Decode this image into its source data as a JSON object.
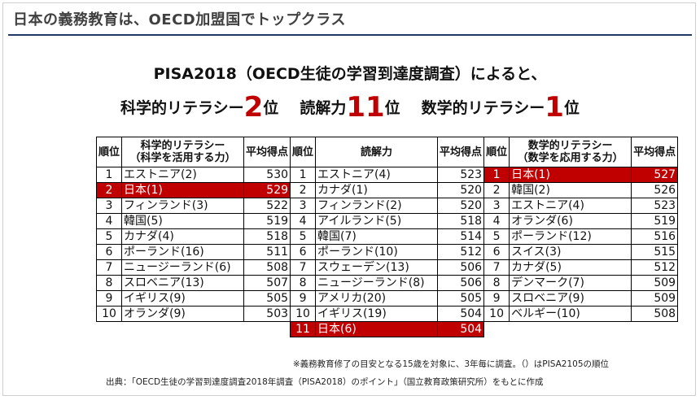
{
  "header": {
    "title": "日本の義務教育は、OECD加盟国でトップクラス"
  },
  "headline": {
    "line1": "PISA2018（OECD生徒の学習到達度調査）によると、",
    "science_label": "科学的リテラシー",
    "science_rank": "2",
    "science_suffix": "位",
    "reading_label": "読解力",
    "reading_rank": "11",
    "reading_suffix": "位",
    "math_label": "数学的リテラシー",
    "math_rank": "1",
    "math_suffix": "位"
  },
  "table": {
    "headers": {
      "rank": "順位",
      "science": "科学的リテラシー",
      "science_sub": "（科学を活用する力）",
      "avg": "平均得点",
      "reading": "読解力",
      "math": "数学的リテラシー",
      "math_sub": "（数学を応用する力）"
    },
    "rows": [
      {
        "r1": "1",
        "s_name": "エストニア(2)",
        "s_score": "530",
        "r2": "1",
        "rd_name": "エストニア(4)",
        "rd_score": "523",
        "r3": "1",
        "m_name": "日本(1)",
        "m_score": "527"
      },
      {
        "r1": "2",
        "s_name": "日本(1)",
        "s_score": "529",
        "r2": "2",
        "rd_name": "カナダ(1)",
        "rd_score": "520",
        "r3": "2",
        "m_name": "韓国(2)",
        "m_score": "526"
      },
      {
        "r1": "3",
        "s_name": "フィンランド(3)",
        "s_score": "522",
        "r2": "3",
        "rd_name": "フィンランド(2)",
        "rd_score": "520",
        "r3": "3",
        "m_name": "エストニア(4)",
        "m_score": "523"
      },
      {
        "r1": "4",
        "s_name": "韓国(5)",
        "s_score": "519",
        "r2": "4",
        "rd_name": "アイルランド(5)",
        "rd_score": "518",
        "r3": "4",
        "m_name": "オランダ(6)",
        "m_score": "519"
      },
      {
        "r1": "5",
        "s_name": "カナダ(4)",
        "s_score": "518",
        "r2": "5",
        "rd_name": "韓国(7)",
        "rd_score": "514",
        "r3": "5",
        "m_name": "ポーランド(12)",
        "m_score": "516"
      },
      {
        "r1": "6",
        "s_name": "ポーランド(16)",
        "s_score": "511",
        "r2": "6",
        "rd_name": "ポーランド(10)",
        "rd_score": "512",
        "r3": "6",
        "m_name": "スイス(3)",
        "m_score": "515"
      },
      {
        "r1": "7",
        "s_name": "ニュージーランド(6)",
        "s_score": "508",
        "r2": "7",
        "rd_name": "スウェーデン(13)",
        "rd_score": "506",
        "r3": "7",
        "m_name": "カナダ(5)",
        "m_score": "512"
      },
      {
        "r1": "8",
        "s_name": "スロベニア(13)",
        "s_score": "507",
        "r2": "8",
        "rd_name": "ニュージーランド(8)",
        "rd_score": "506",
        "r3": "8",
        "m_name": "デンマーク(7)",
        "m_score": "509"
      },
      {
        "r1": "9",
        "s_name": "イギリス(9)",
        "s_score": "505",
        "r2": "9",
        "rd_name": "アメリカ(20)",
        "rd_score": "505",
        "r3": "9",
        "m_name": "スロベニア(9)",
        "m_score": "509"
      },
      {
        "r1": "10",
        "s_name": "オランダ(9)",
        "s_score": "503",
        "r2": "10",
        "rd_name": "イギリス(19)",
        "rd_score": "504",
        "r3": "10",
        "m_name": "ベルギー(10)",
        "m_score": "508"
      }
    ],
    "extra_row": {
      "r2": "11",
      "rd_name": "日本(6)",
      "rd_score": "504"
    }
  },
  "footnote": "※義務教育修了の目安となる15歳を対象に、3年毎に調査。（）はPISA2105の順位",
  "source": "出典：「OECD生徒の学習到達度調査2018年調査（PISA2018）のポイント」（国立教育政策研究所）をもとに作成",
  "colors": {
    "accent": "#c00000",
    "rule": "#1f3864"
  }
}
